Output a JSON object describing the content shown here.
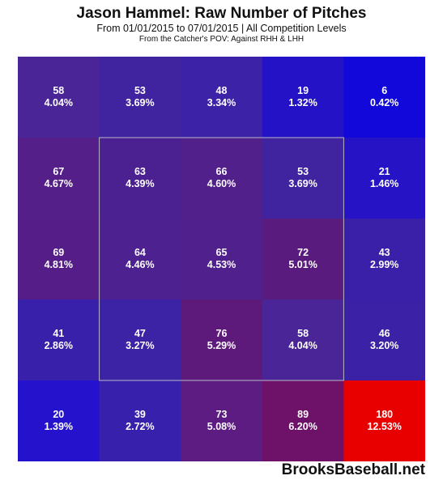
{
  "title": "Jason Hammel: Raw Number of Pitches",
  "subtitle": "From 01/01/2015 to 07/01/2015 | All Competition Levels",
  "subtitle2": "From the Catcher's POV:  Against RHH & LHH",
  "watermark": "BrooksBaseball.net",
  "chart_data": {
    "type": "heatmap",
    "rows": 5,
    "cols": 5,
    "strike_zone": {
      "row_start": 1,
      "row_end": 4,
      "col_start": 1,
      "col_end": 4
    },
    "cells": [
      [
        {
          "count": "58",
          "pct": "4.04%",
          "color": "#4a2597"
        },
        {
          "count": "53",
          "pct": "3.69%",
          "color": "#40249f"
        },
        {
          "count": "48",
          "pct": "3.34%",
          "color": "#3c22a6"
        },
        {
          "count": "19",
          "pct": "1.32%",
          "color": "#2412c6"
        },
        {
          "count": "6",
          "pct": "0.42%",
          "color": "#1208d9"
        }
      ],
      [
        {
          "count": "67",
          "pct": "4.67%",
          "color": "#541f88"
        },
        {
          "count": "63",
          "pct": "4.39%",
          "color": "#4b2192"
        },
        {
          "count": "66",
          "pct": "4.60%",
          "color": "#52208b"
        },
        {
          "count": "53",
          "pct": "3.69%",
          "color": "#40249f"
        },
        {
          "count": "21",
          "pct": "1.46%",
          "color": "#2613c5"
        }
      ],
      [
        {
          "count": "69",
          "pct": "4.81%",
          "color": "#551d88"
        },
        {
          "count": "64",
          "pct": "4.46%",
          "color": "#4d2190"
        },
        {
          "count": "65",
          "pct": "4.53%",
          "color": "#50208d"
        },
        {
          "count": "72",
          "pct": "5.01%",
          "color": "#5a1b7e"
        },
        {
          "count": "43",
          "pct": "2.99%",
          "color": "#3a1fa8"
        }
      ],
      [
        {
          "count": "41",
          "pct": "2.86%",
          "color": "#3820aa"
        },
        {
          "count": "47",
          "pct": "3.27%",
          "color": "#3c22a5"
        },
        {
          "count": "76",
          "pct": "5.29%",
          "color": "#5e1a7b"
        },
        {
          "count": "58",
          "pct": "4.04%",
          "color": "#4a2597"
        },
        {
          "count": "46",
          "pct": "3.20%",
          "color": "#3b21a6"
        }
      ],
      [
        {
          "count": "20",
          "pct": "1.39%",
          "color": "#2412cc"
        },
        {
          "count": "39",
          "pct": "2.72%",
          "color": "#3720ab"
        },
        {
          "count": "73",
          "pct": "5.08%",
          "color": "#5c1c82"
        },
        {
          "count": "89",
          "pct": "6.20%",
          "color": "#6e1269"
        },
        {
          "count": "180",
          "pct": "12.53%",
          "color": "#e80000"
        }
      ]
    ]
  }
}
